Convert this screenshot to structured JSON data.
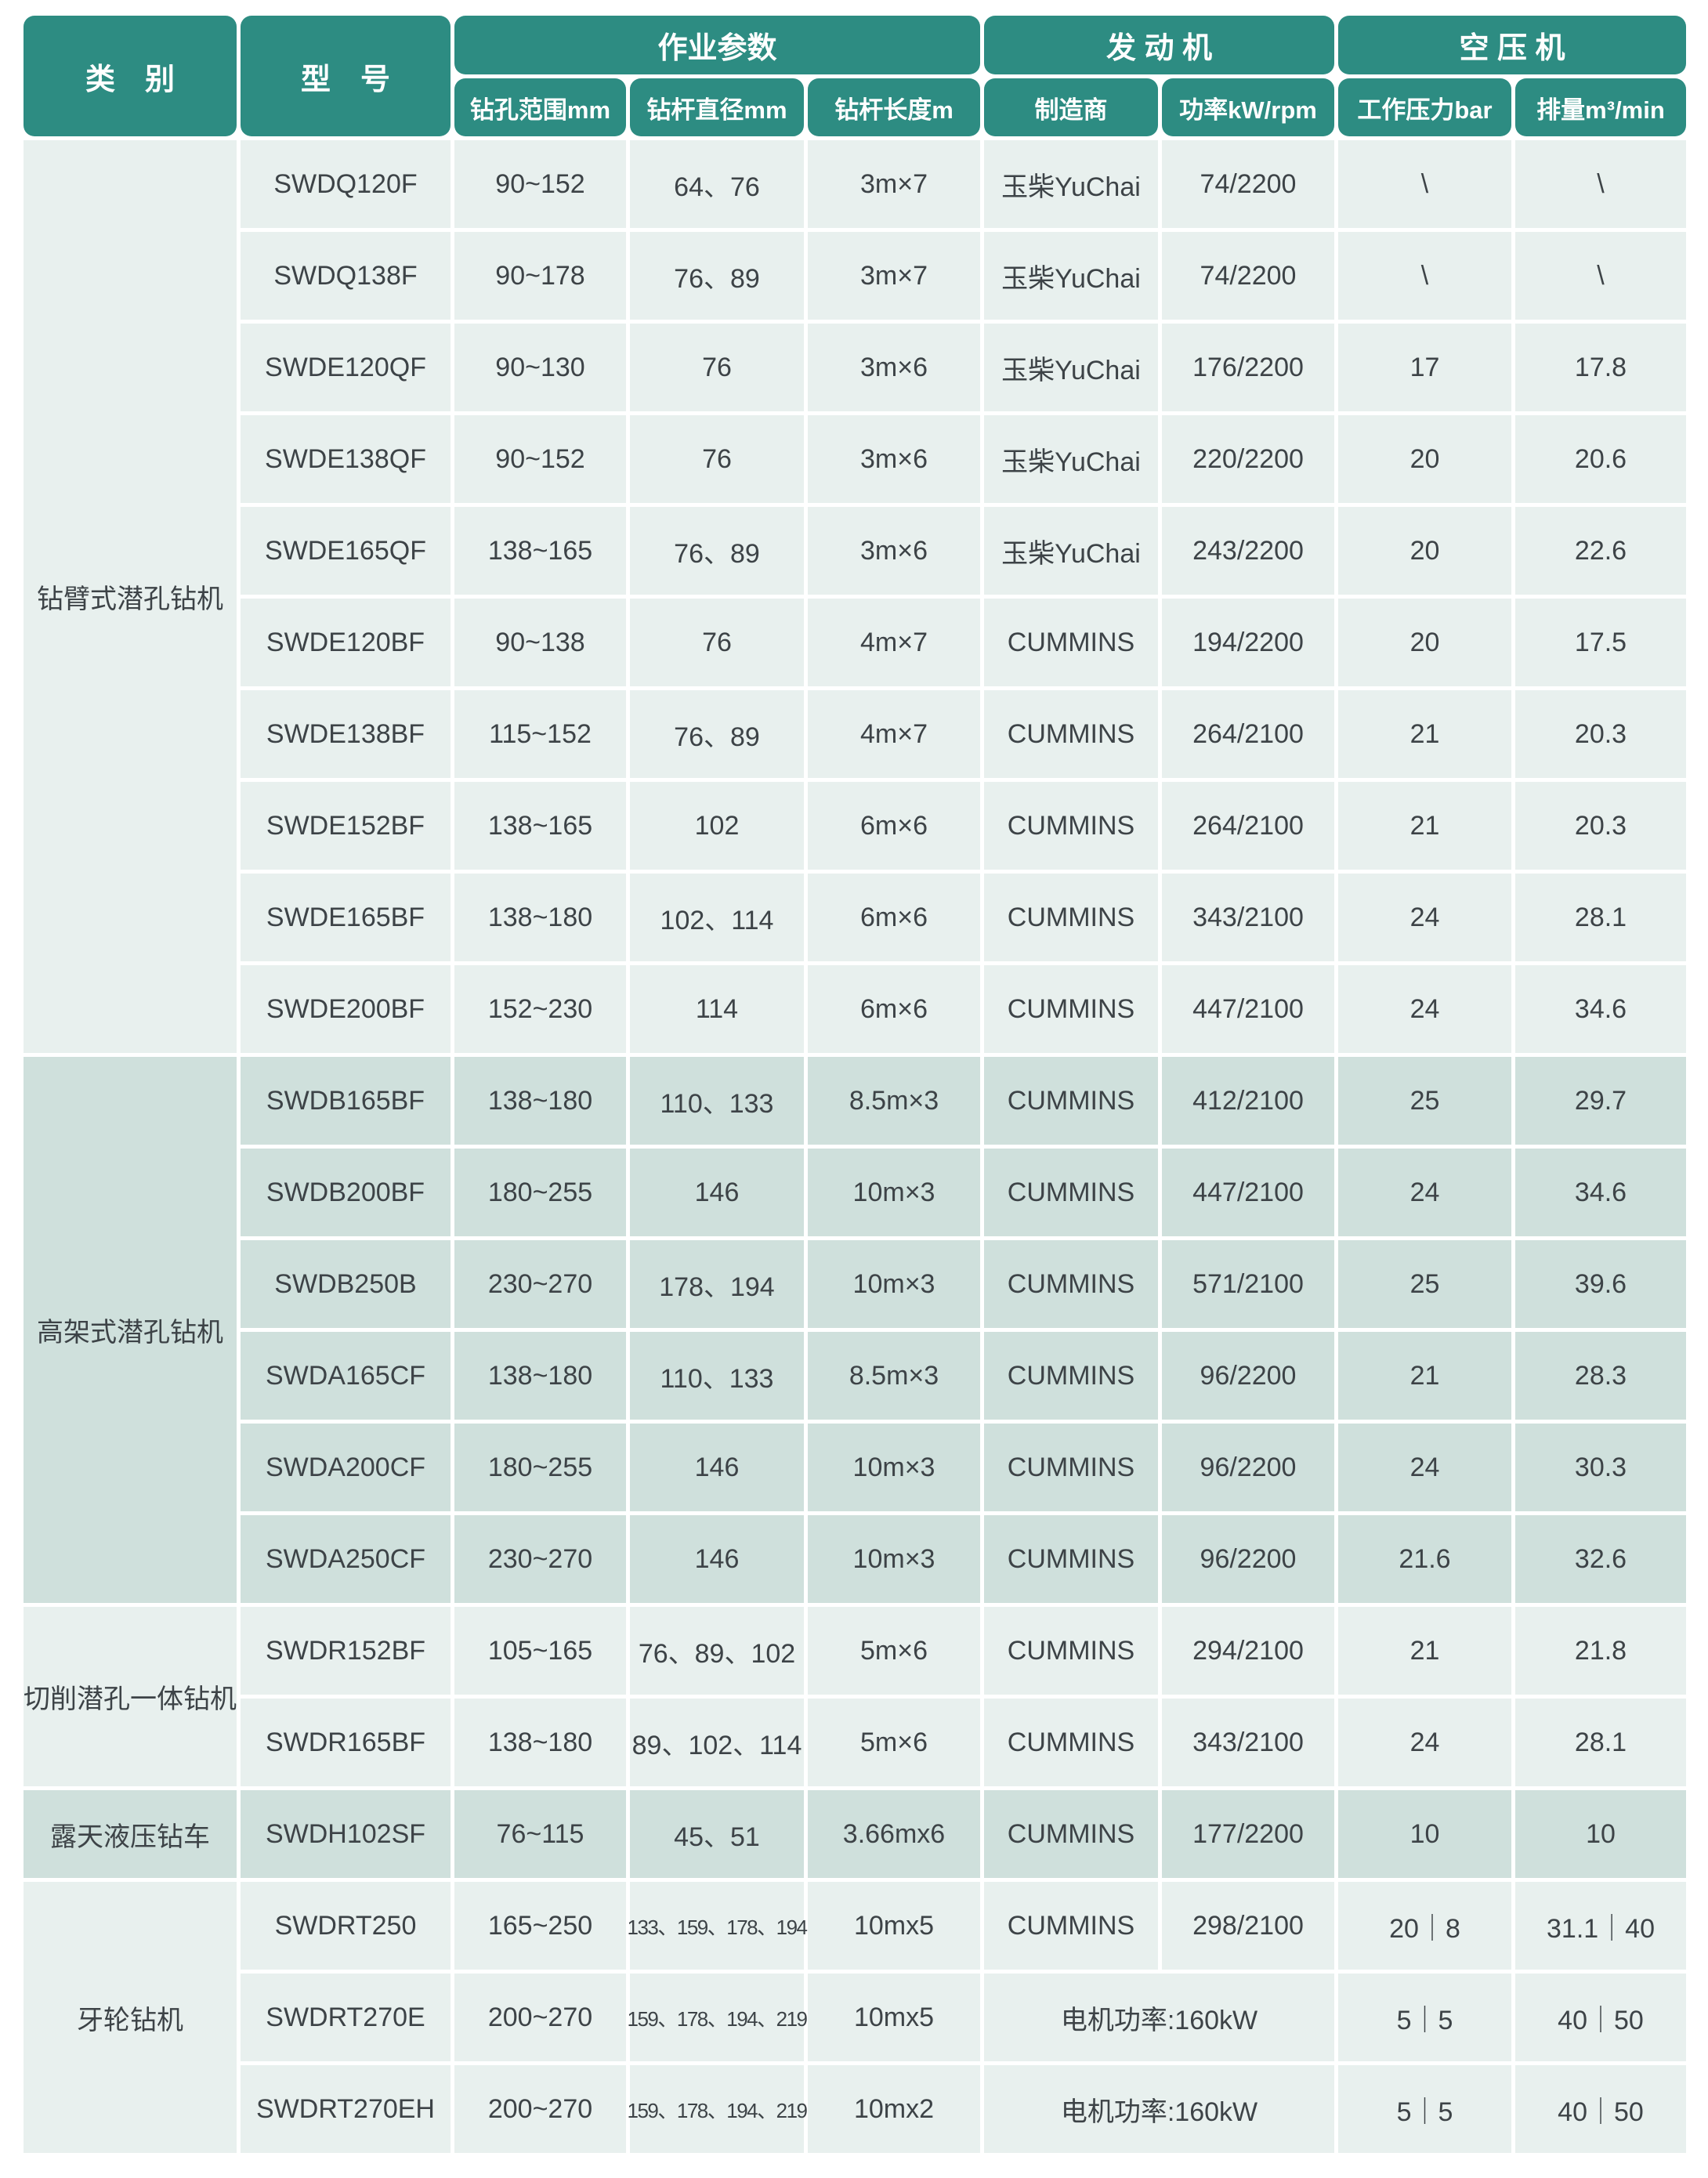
{
  "colors": {
    "header_teal": "#2d8c82",
    "row_light": "#e8f0ee",
    "row_dark": "#cfe0dc",
    "text_dark": "#3d4347",
    "header_text": "#ffffff"
  },
  "table": {
    "header": {
      "category": "类　别",
      "model": "型　号",
      "groups": [
        {
          "label": "作业参数",
          "span": 3
        },
        {
          "label": "发 动 机",
          "span": 2
        },
        {
          "label": "空 压 机",
          "span": 2
        }
      ],
      "subheaders": [
        "钻孔范围mm",
        "钻杆直径mm",
        "钻杆长度m",
        "制造商",
        "功率kW/rpm",
        "工作压力bar",
        "排量m³/min"
      ]
    },
    "categories": [
      {
        "label": "钻臂式潜孔钻机",
        "rows": 10,
        "shade": "light"
      },
      {
        "label": "高架式潜孔钻机",
        "rows": 6,
        "shade": "dark"
      },
      {
        "label": "切削潜孔一体钻机",
        "rows": 2,
        "shade": "light"
      },
      {
        "label": "露天液压钻车",
        "rows": 1,
        "shade": "dark"
      },
      {
        "label": "牙轮钻机",
        "rows": 3,
        "shade": "light"
      }
    ],
    "rows": [
      {
        "model": "SWDQ120F",
        "drill_range": "90~152",
        "rod_diameter": "64、76",
        "rod_length": "3m×7",
        "maker": "玉柴YuChai",
        "power": "74/2200",
        "pressure": "\\",
        "flow": "\\"
      },
      {
        "model": "SWDQ138F",
        "drill_range": "90~178",
        "rod_diameter": "76、89",
        "rod_length": "3m×7",
        "maker": "玉柴YuChai",
        "power": "74/2200",
        "pressure": "\\",
        "flow": "\\"
      },
      {
        "model": "SWDE120QF",
        "drill_range": "90~130",
        "rod_diameter": "76",
        "rod_length": "3m×6",
        "maker": "玉柴YuChai",
        "power": "176/2200",
        "pressure": "17",
        "flow": "17.8"
      },
      {
        "model": "SWDE138QF",
        "drill_range": "90~152",
        "rod_diameter": "76",
        "rod_length": "3m×6",
        "maker": "玉柴YuChai",
        "power": "220/2200",
        "pressure": "20",
        "flow": "20.6"
      },
      {
        "model": "SWDE165QF",
        "drill_range": "138~165",
        "rod_diameter": "76、89",
        "rod_length": "3m×6",
        "maker": "玉柴YuChai",
        "power": "243/2200",
        "pressure": "20",
        "flow": "22.6"
      },
      {
        "model": "SWDE120BF",
        "drill_range": "90~138",
        "rod_diameter": "76",
        "rod_length": "4m×7",
        "maker": "CUMMINS",
        "power": "194/2200",
        "pressure": "20",
        "flow": "17.5"
      },
      {
        "model": "SWDE138BF",
        "drill_range": "115~152",
        "rod_diameter": "76、89",
        "rod_length": "4m×7",
        "maker": "CUMMINS",
        "power": "264/2100",
        "pressure": "21",
        "flow": "20.3"
      },
      {
        "model": "SWDE152BF",
        "drill_range": "138~165",
        "rod_diameter": "102",
        "rod_length": "6m×6",
        "maker": "CUMMINS",
        "power": "264/2100",
        "pressure": "21",
        "flow": "20.3"
      },
      {
        "model": "SWDE165BF",
        "drill_range": "138~180",
        "rod_diameter": "102、114",
        "rod_length": "6m×6",
        "maker": "CUMMINS",
        "power": "343/2100",
        "pressure": "24",
        "flow": "28.1"
      },
      {
        "model": "SWDE200BF",
        "drill_range": "152~230",
        "rod_diameter": "114",
        "rod_length": "6m×6",
        "maker": "CUMMINS",
        "power": "447/2100",
        "pressure": "24",
        "flow": "34.6"
      },
      {
        "model": "SWDB165BF",
        "drill_range": "138~180",
        "rod_diameter": "110、133",
        "rod_length": "8.5m×3",
        "maker": "CUMMINS",
        "power": "412/2100",
        "pressure": "25",
        "flow": "29.7"
      },
      {
        "model": "SWDB200BF",
        "drill_range": "180~255",
        "rod_diameter": "146",
        "rod_length": "10m×3",
        "maker": "CUMMINS",
        "power": "447/2100",
        "pressure": "24",
        "flow": "34.6"
      },
      {
        "model": "SWDB250B",
        "drill_range": "230~270",
        "rod_diameter": "178、194",
        "rod_length": "10m×3",
        "maker": "CUMMINS",
        "power": "571/2100",
        "pressure": "25",
        "flow": "39.6"
      },
      {
        "model": "SWDA165CF",
        "drill_range": "138~180",
        "rod_diameter": "110、133",
        "rod_length": "8.5m×3",
        "maker": "CUMMINS",
        "power": "96/2200",
        "pressure": "21",
        "flow": "28.3"
      },
      {
        "model": "SWDA200CF",
        "drill_range": "180~255",
        "rod_diameter": "146",
        "rod_length": "10m×3",
        "maker": "CUMMINS",
        "power": "96/2200",
        "pressure": "24",
        "flow": "30.3"
      },
      {
        "model": "SWDA250CF",
        "drill_range": "230~270",
        "rod_diameter": "146",
        "rod_length": "10m×3",
        "maker": "CUMMINS",
        "power": "96/2200",
        "pressure": "21.6",
        "flow": "32.6"
      },
      {
        "model": "SWDR152BF",
        "drill_range": "105~165",
        "rod_diameter": "76、89、102",
        "rod_length": "5m×6",
        "maker": "CUMMINS",
        "power": "294/2100",
        "pressure": "21",
        "flow": "21.8"
      },
      {
        "model": "SWDR165BF",
        "drill_range": "138~180",
        "rod_diameter": "89、102、114",
        "rod_length": "5m×6",
        "maker": "CUMMINS",
        "power": "343/2100",
        "pressure": "24",
        "flow": "28.1"
      },
      {
        "model": "SWDH102SF",
        "drill_range": "76~115",
        "rod_diameter": "45、51",
        "rod_length": "3.66mx6",
        "maker": "CUMMINS",
        "power": "177/2200",
        "pressure": "10",
        "flow": "10"
      },
      {
        "model": "SWDRT250",
        "drill_range": "165~250",
        "rod_diameter": "133、159、178、194",
        "diameter_small": true,
        "rod_length": "10mx5",
        "maker": "CUMMINS",
        "power": "298/2100",
        "pressure": "20｜8",
        "flow": "31.1｜40"
      },
      {
        "model": "SWDRT270E",
        "drill_range": "200~270",
        "rod_diameter": "159、178、194、219",
        "diameter_small": true,
        "rod_length": "10mx5",
        "engine_merged": "电机功率:160kW",
        "pressure": "5｜5",
        "flow": "40｜50"
      },
      {
        "model": "SWDRT270EH",
        "drill_range": "200~270",
        "rod_diameter": "159、178、194、219",
        "diameter_small": true,
        "rod_length": "10mx2",
        "engine_merged": "电机功率:160kW",
        "pressure": "5｜5",
        "flow": "40｜50"
      }
    ]
  }
}
